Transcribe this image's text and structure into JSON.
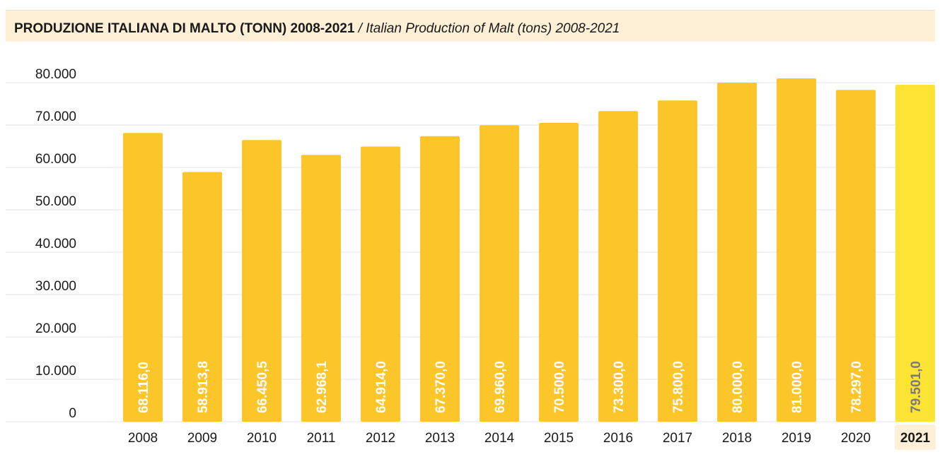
{
  "header": {
    "title_main": "PRODUZIONE ITALIANA DI MALTO (TONN) 2008-2021",
    "title_sub": " / Italian Production of Malt (tons) 2008-2021"
  },
  "colors": {
    "bar": "#fcc62a",
    "bar_highlight": "#fde333",
    "highlight_tick_bg": "#fdf0d6",
    "grid": "#e3e3e3"
  },
  "chart_data": {
    "type": "bar",
    "title": "PRODUZIONE ITALIANA DI MALTO (TONN) 2008-2021 / Italian Production of Malt (tons) 2008-2021",
    "categories": [
      "2008",
      "2009",
      "2010",
      "2011",
      "2012",
      "2013",
      "2014",
      "2015",
      "2016",
      "2017",
      "2018",
      "2019",
      "2020",
      "2021"
    ],
    "values": [
      68116.0,
      58913.8,
      66450.5,
      62968.1,
      64914.0,
      67370.0,
      69960.0,
      70500.0,
      73300.0,
      75800.0,
      80000.0,
      81000.0,
      78297.0,
      79501.0
    ],
    "value_labels": [
      "68.116,0",
      "58.913,8",
      "66.450,5",
      "62.968,1",
      "64.914,0",
      "67.370,0",
      "69.960,0",
      "70.500,0",
      "73.300,0",
      "75.800,0",
      "80.000,0",
      "81.000,0",
      "78.297,0",
      "79.501,0"
    ],
    "yticks": [
      0,
      10000,
      20000,
      30000,
      40000,
      50000,
      60000,
      70000,
      80000
    ],
    "ytick_labels": [
      "0",
      "10.000",
      "20.000",
      "30.000",
      "40.000",
      "50.000",
      "60.000",
      "70.000",
      "80.000"
    ],
    "ylim": [
      0,
      80000
    ],
    "highlight": "2021",
    "grid": true,
    "xlabel": "",
    "ylabel": ""
  }
}
